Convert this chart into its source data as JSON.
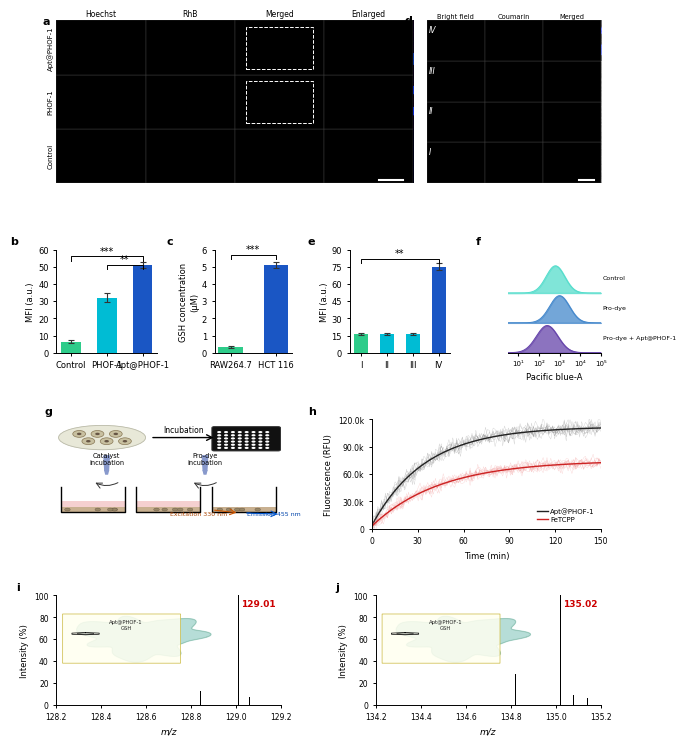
{
  "panel_b": {
    "categories": [
      "Control",
      "PHOF-1",
      "Apt@PHOF-1"
    ],
    "values": [
      6.5,
      32.0,
      51.0
    ],
    "errors": [
      0.8,
      2.5,
      2.0
    ],
    "colors": [
      "#2ecc8a",
      "#00bcd4",
      "#1a56c4"
    ],
    "ylabel": "MFI (a.u.)",
    "ylim": [
      0,
      60
    ],
    "yticks": [
      0,
      10,
      20,
      30,
      40,
      50,
      60
    ],
    "sig_lines": [
      {
        "x1": 0,
        "x2": 2,
        "y": 56,
        "text": "***"
      },
      {
        "x1": 1,
        "x2": 2,
        "y": 51,
        "text": "**"
      }
    ]
  },
  "panel_c": {
    "categories": [
      "RAW264.7",
      "HCT 116"
    ],
    "values": [
      0.35,
      5.1
    ],
    "errors": [
      0.05,
      0.2
    ],
    "colors": [
      "#2ecc8a",
      "#1a56c4"
    ],
    "ylabel": "GSH concentration\n(μM)",
    "ylim": [
      0,
      6
    ],
    "yticks": [
      0,
      1,
      2,
      3,
      4,
      5,
      6
    ],
    "sig_lines": [
      {
        "x1": 0,
        "x2": 1,
        "y": 5.7,
        "text": "***"
      }
    ]
  },
  "panel_e": {
    "categories": [
      "I",
      "II",
      "III",
      "IV"
    ],
    "values": [
      16.0,
      16.5,
      16.5,
      75.0
    ],
    "errors": [
      0.8,
      0.8,
      0.9,
      3.0
    ],
    "colors": [
      "#2ecc8a",
      "#00bcd4",
      "#00bcd4",
      "#1a56c4"
    ],
    "ylabel": "MFI (a.u.)",
    "ylim": [
      0,
      90
    ],
    "yticks": [
      0,
      15,
      30,
      45,
      60,
      75,
      90
    ],
    "sig_lines": [
      {
        "x1": 0,
        "x2": 3,
        "y": 82,
        "text": "**"
      }
    ]
  },
  "panel_f": {
    "legend": [
      "Control",
      "Pro-dye",
      "Pro-dye + Apt@PHOF-1"
    ],
    "colors": [
      "#55ddcc",
      "#4488cc",
      "#6644aa"
    ],
    "xlabel": "Pacific blue-A"
  },
  "panel_h": {
    "ylabel": "Fluorescence (RFU)",
    "xlabel": "Time (min)",
    "ylim": [
      0,
      120000
    ],
    "xlim": [
      0,
      150
    ],
    "ytick_labels": [
      "0",
      "30.0k",
      "60.0k",
      "90.0k",
      "120.0k"
    ],
    "yticks": [
      0,
      30000,
      60000,
      90000,
      120000
    ],
    "xticks": [
      0,
      30,
      60,
      90,
      120,
      150
    ],
    "legend": [
      "Apt@PHOF-1",
      "FeTCPP"
    ],
    "colors_dark": [
      "#333333",
      "#cc2222"
    ],
    "colors_band": [
      "#888888",
      "#ee8888"
    ]
  },
  "panel_i": {
    "xlabel": "m/z",
    "ylabel": "Intensity (%)",
    "xlim": [
      128.2,
      129.2
    ],
    "xticks": [
      128.2,
      128.4,
      128.6,
      128.8,
      129.0,
      129.2
    ],
    "ylim": [
      0,
      100
    ],
    "peaks": [
      {
        "x": 128.84,
        "height": 13
      },
      {
        "x": 129.01,
        "height": 100
      },
      {
        "x": 129.06,
        "height": 7
      }
    ],
    "annotation": "129.01",
    "annotation_color": "#cc0000",
    "blob_color": "#aad8d0"
  },
  "panel_j": {
    "xlabel": "m/z",
    "ylabel": "Intensity (%)",
    "xlim": [
      134.2,
      135.2
    ],
    "xticks": [
      134.2,
      134.4,
      134.6,
      134.8,
      135.0,
      135.2
    ],
    "ylim": [
      0,
      100
    ],
    "peaks": [
      {
        "x": 134.82,
        "height": 28
      },
      {
        "x": 135.02,
        "height": 100
      },
      {
        "x": 135.08,
        "height": 9
      },
      {
        "x": 135.14,
        "height": 6
      }
    ],
    "annotation": "135.02",
    "annotation_color": "#cc0000",
    "blob_color": "#aad8d0"
  },
  "bg_color": "#ffffff"
}
